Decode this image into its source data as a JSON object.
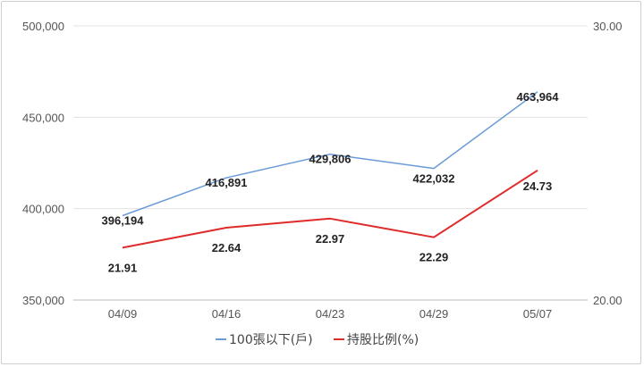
{
  "chart_data": {
    "type": "line",
    "categories": [
      "04/09",
      "04/16",
      "04/23",
      "04/29",
      "05/07"
    ],
    "series": [
      {
        "name": "100張以下(戶)",
        "axis": "left",
        "color": "#6a9bd8",
        "values": [
          396194,
          416891,
          429806,
          422032,
          463964
        ],
        "labels": [
          "396,194",
          "416,891",
          "429,806",
          "422,032",
          "463,964"
        ]
      },
      {
        "name": "持股比例(%)",
        "axis": "right",
        "color": "#e02b2b",
        "values": [
          21.91,
          22.64,
          22.97,
          22.29,
          24.73
        ],
        "labels": [
          "21.91",
          "22.64",
          "22.97",
          "22.29",
          "24.73"
        ]
      }
    ],
    "y_left": {
      "ylim": [
        350000,
        500000
      ],
      "ticks": [
        350000,
        400000,
        450000,
        500000
      ],
      "tick_labels": [
        "350,000",
        "400,000",
        "450,000",
        "500,000"
      ]
    },
    "y_right": {
      "ylim": [
        20.0,
        30.0
      ],
      "tick_labels": [
        "20.00",
        "30.00"
      ]
    },
    "grid": true,
    "legend_position": "bottom"
  }
}
